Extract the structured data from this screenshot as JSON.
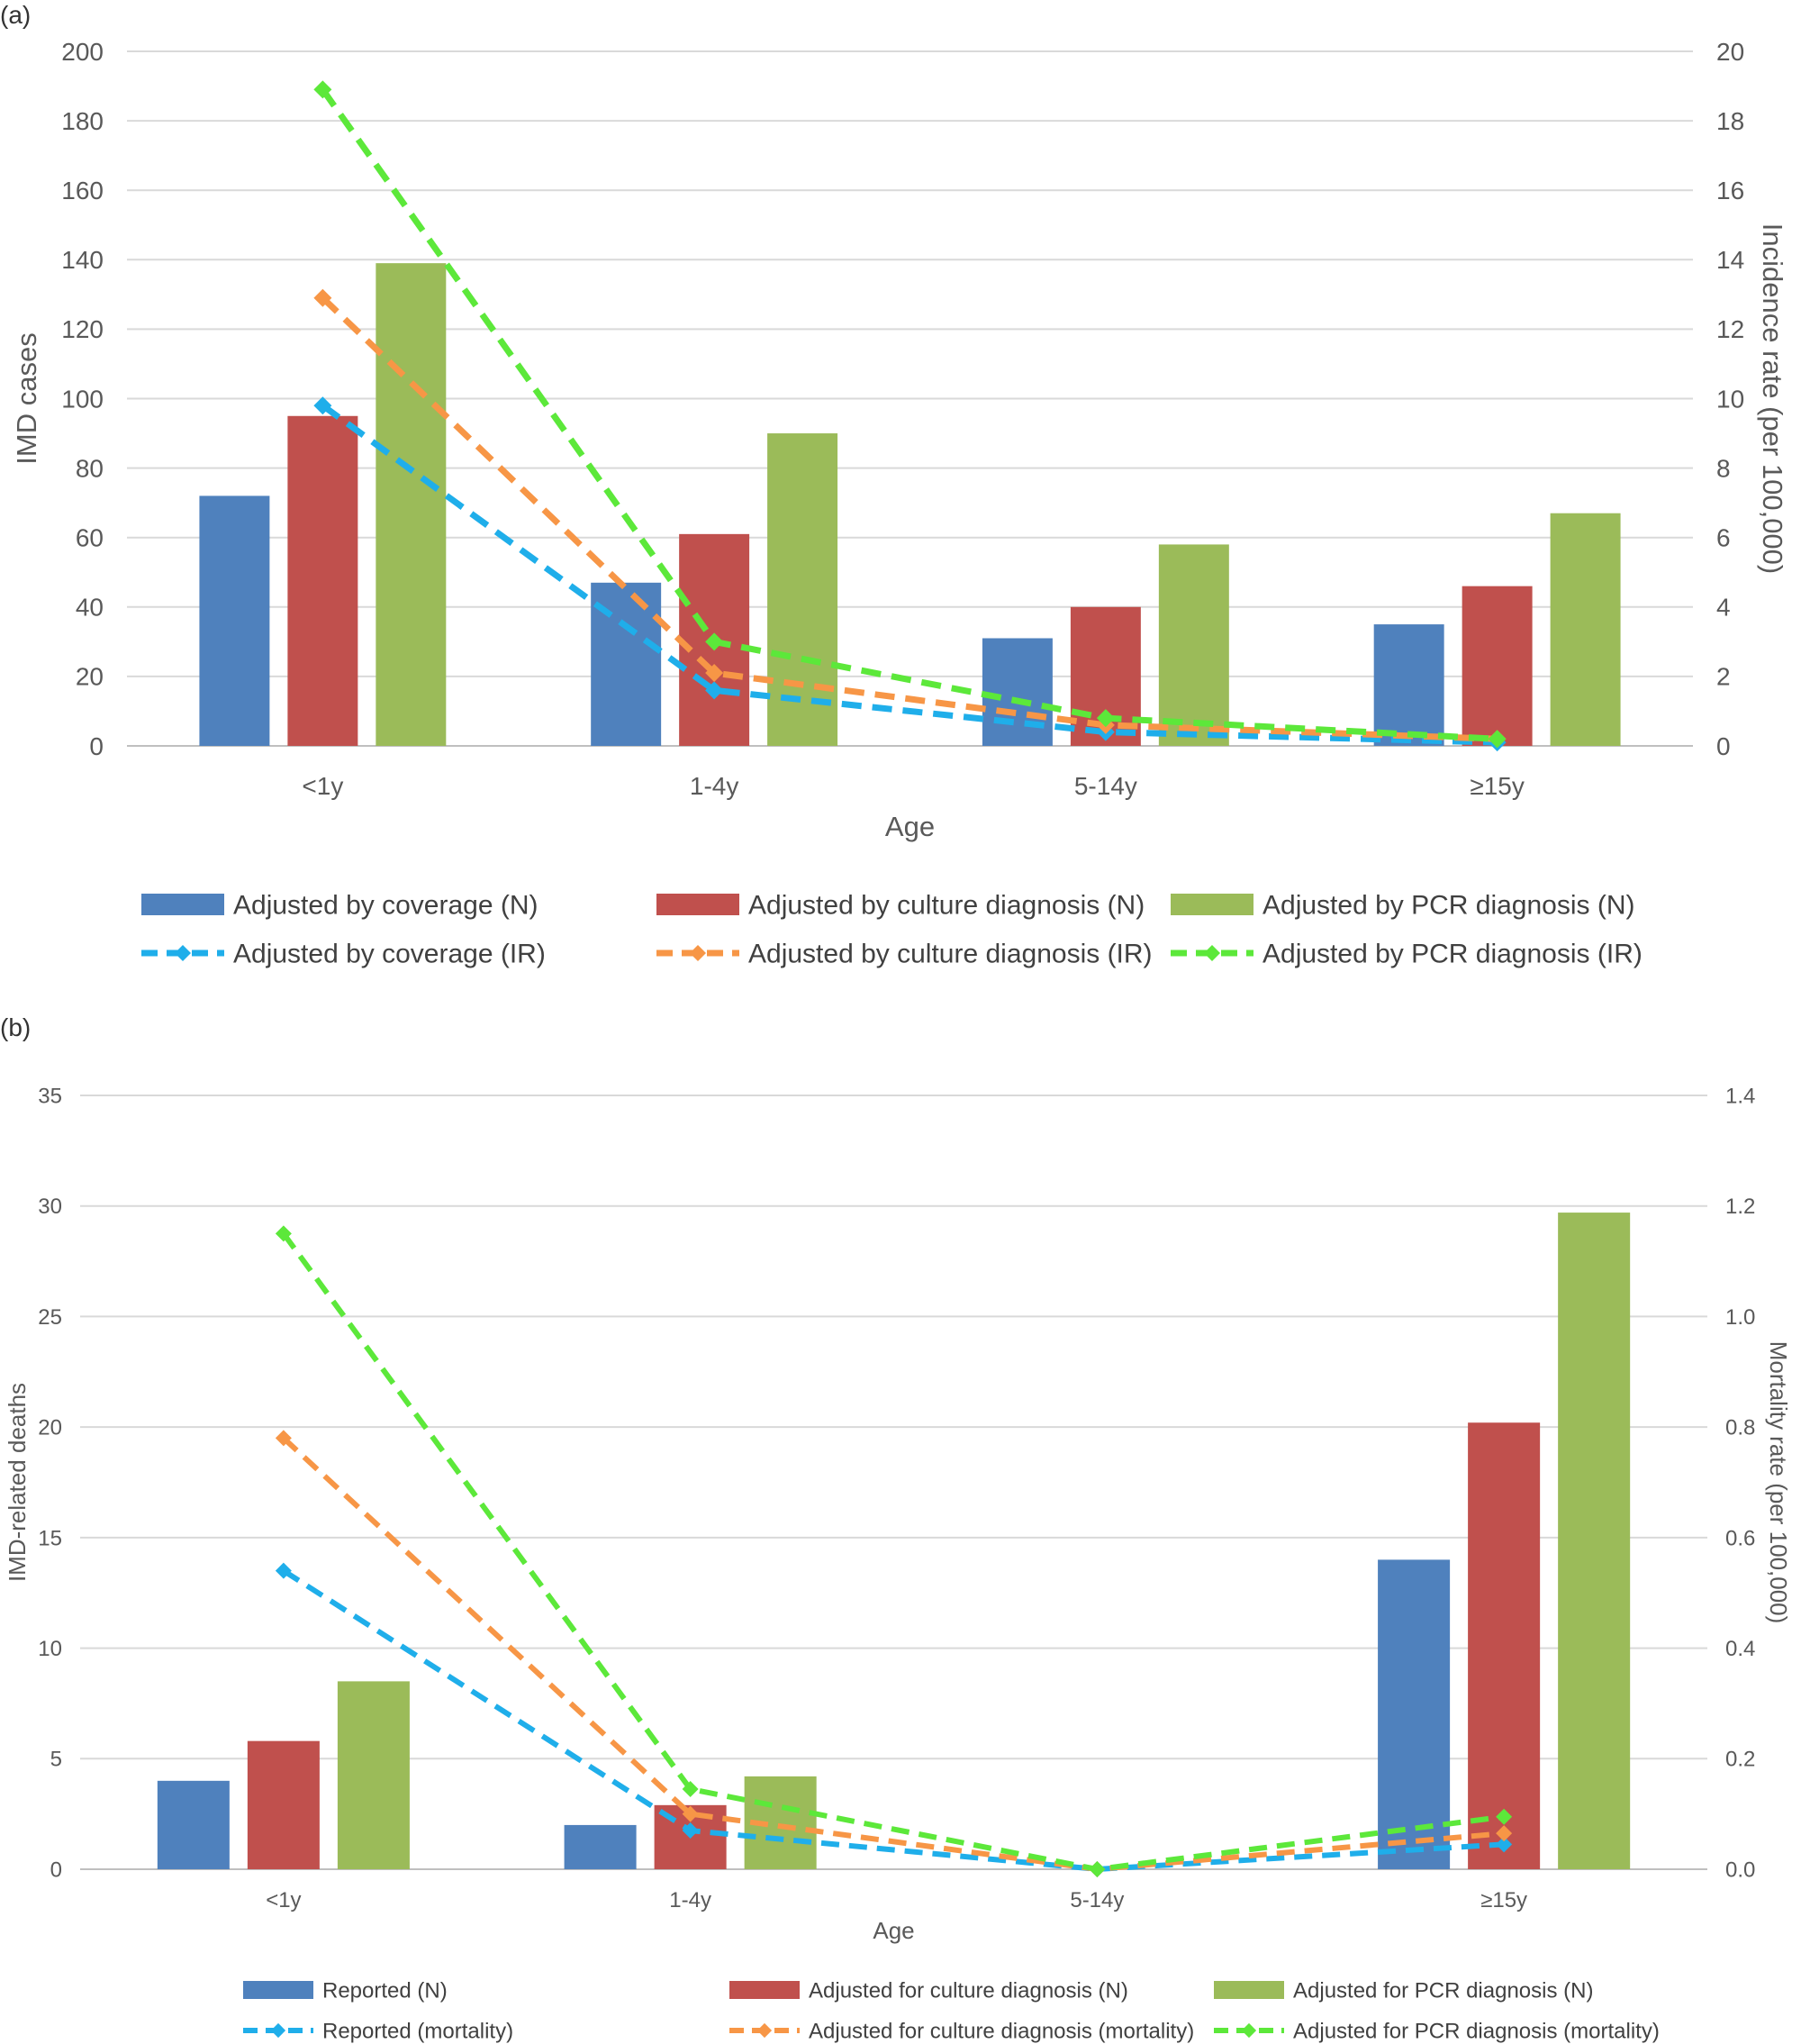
{
  "panel_labels": [
    "(a)",
    "(b)"
  ],
  "chart_data": [
    {
      "type": "bar",
      "panel": "(a)",
      "categories": [
        "<1y",
        "1-4y",
        "5-14y",
        "≥15y"
      ],
      "xlabel": "Age",
      "ylabel": "IMD cases",
      "y2label": "Incidence rate  (per 100,000)",
      "ylim": [
        0,
        200
      ],
      "y2lim": [
        0,
        20
      ],
      "yticks": [
        "0",
        "20",
        "40",
        "60",
        "80",
        "100",
        "120",
        "140",
        "160",
        "180",
        "200"
      ],
      "y2ticks": [
        "0",
        "2",
        "4",
        "6",
        "8",
        "10",
        "12",
        "14",
        "16",
        "18",
        "20"
      ],
      "grid": true,
      "legend_position": "bottom",
      "series": [
        {
          "name": "Adjusted by coverage (N)",
          "kind": "bar",
          "axis": "left",
          "color": "#4F81BD",
          "values": [
            72,
            47,
            31,
            35
          ]
        },
        {
          "name": "Adjusted by culture diagnosis (N)",
          "kind": "bar",
          "axis": "left",
          "color": "#C0504D",
          "values": [
            95,
            61,
            40,
            46
          ]
        },
        {
          "name": "Adjusted by PCR diagnosis (N)",
          "kind": "bar",
          "axis": "left",
          "color": "#9BBB59",
          "values": [
            139,
            90,
            58,
            67
          ]
        },
        {
          "name": "Adjusted by coverage (IR)",
          "kind": "line",
          "axis": "right",
          "color": "#1FAEEA",
          "values": [
            9.8,
            1.6,
            0.4,
            0.1
          ]
        },
        {
          "name": "Adjusted by culture diagnosis (IR)",
          "kind": "line",
          "axis": "right",
          "color": "#F79646",
          "values": [
            12.9,
            2.1,
            0.6,
            0.2
          ]
        },
        {
          "name": "Adjusted by PCR diagnosis (IR)",
          "kind": "line",
          "axis": "right",
          "color": "#5CE83A",
          "values": [
            18.9,
            3.0,
            0.8,
            0.2
          ]
        }
      ]
    },
    {
      "type": "bar",
      "panel": "(b)",
      "categories": [
        "<1y",
        "1-4y",
        "5-14y",
        "≥15y"
      ],
      "xlabel": "Age",
      "ylabel": "IMD-related deaths",
      "y2label": "Mortality rate (per 100,000)",
      "ylim": [
        0,
        35
      ],
      "y2lim": [
        0,
        1.4
      ],
      "yticks": [
        "0",
        "5",
        "10",
        "15",
        "20",
        "25",
        "30",
        "35"
      ],
      "y2ticks": [
        "0.0",
        "0.2",
        "0.4",
        "0.6",
        "0.8",
        "1.0",
        "1.2",
        "1.4"
      ],
      "grid": true,
      "legend_position": "bottom",
      "series": [
        {
          "name": "Reported (N)",
          "kind": "bar",
          "axis": "left",
          "color": "#4F81BD",
          "values": [
            4,
            2,
            0,
            14
          ]
        },
        {
          "name": "Adjusted for culture diagnosis (N)",
          "kind": "bar",
          "axis": "left",
          "color": "#C0504D",
          "values": [
            5.8,
            2.9,
            0,
            20.2
          ]
        },
        {
          "name": "Adjusted for PCR diagnosis (N)",
          "kind": "bar",
          "axis": "left",
          "color": "#9BBB59",
          "values": [
            8.5,
            4.2,
            0,
            29.7
          ]
        },
        {
          "name": "Reported (mortality)",
          "kind": "line",
          "axis": "right",
          "color": "#1FAEEA",
          "values": [
            0.54,
            0.07,
            0.0,
            0.045
          ]
        },
        {
          "name": "Adjusted for culture diagnosis (mortality)",
          "kind": "line",
          "axis": "right",
          "color": "#F79646",
          "values": [
            0.78,
            0.1,
            0.0,
            0.065
          ]
        },
        {
          "name": "Adjusted for PCR diagnosis (mortality)",
          "kind": "line",
          "axis": "right",
          "color": "#5CE83A",
          "values": [
            1.15,
            0.145,
            0.0,
            0.095
          ]
        }
      ]
    }
  ]
}
